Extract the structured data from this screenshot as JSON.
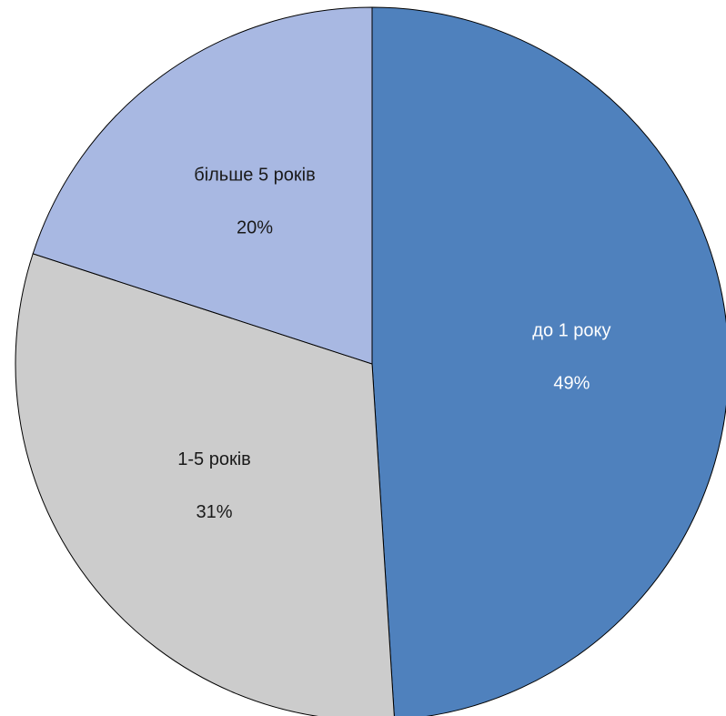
{
  "chart_data": {
    "type": "pie",
    "start_angle_deg": 0,
    "direction": "clockwise",
    "legend": "none",
    "slices": [
      {
        "label": "до 1 року",
        "value": 49,
        "value_label": "49%",
        "color": "#4f81bd",
        "text_color": "#ffffff"
      },
      {
        "label": "1-5 років",
        "value": 31,
        "value_label": "31%",
        "color": "#cccccc",
        "text_color": "#1a1a1a"
      },
      {
        "label": "більше 5 років",
        "value": 20,
        "value_label": "20%",
        "color": "#a8b8e2",
        "text_color": "#1a1a1a"
      }
    ]
  }
}
